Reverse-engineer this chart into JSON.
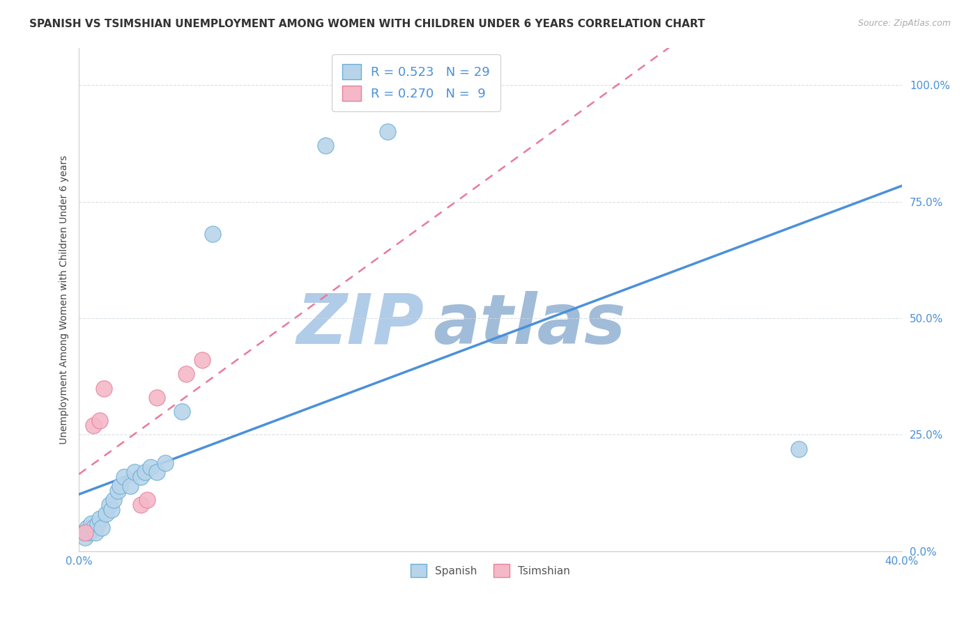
{
  "title": "SPANISH VS TSIMSHIAN UNEMPLOYMENT AMONG WOMEN WITH CHILDREN UNDER 6 YEARS CORRELATION CHART",
  "source": "Source: ZipAtlas.com",
  "ylabel": "Unemployment Among Women with Children Under 6 years",
  "xlim": [
    0.0,
    0.4
  ],
  "ylim": [
    0.0,
    1.08
  ],
  "xtick_positions": [
    0.0,
    0.4
  ],
  "xtick_labels": [
    "0.0%",
    "40.0%"
  ],
  "ytick_positions": [
    0.0,
    0.25,
    0.5,
    0.75,
    1.0
  ],
  "ytick_labels": [
    "0.0%",
    "25.0%",
    "50.0%",
    "75.0%",
    "100.0%"
  ],
  "spanish_x": [
    0.002,
    0.003,
    0.004,
    0.005,
    0.006,
    0.007,
    0.008,
    0.009,
    0.01,
    0.011,
    0.013,
    0.015,
    0.016,
    0.017,
    0.019,
    0.02,
    0.022,
    0.025,
    0.027,
    0.03,
    0.032,
    0.035,
    0.038,
    0.042,
    0.05,
    0.065,
    0.12,
    0.15,
    0.35
  ],
  "spanish_y": [
    0.04,
    0.03,
    0.05,
    0.04,
    0.06,
    0.05,
    0.04,
    0.06,
    0.07,
    0.05,
    0.08,
    0.1,
    0.09,
    0.11,
    0.13,
    0.14,
    0.16,
    0.14,
    0.17,
    0.16,
    0.17,
    0.18,
    0.17,
    0.19,
    0.3,
    0.68,
    0.87,
    0.9,
    0.22
  ],
  "tsimshian_x": [
    0.003,
    0.007,
    0.01,
    0.012,
    0.03,
    0.033,
    0.038,
    0.052,
    0.06
  ],
  "tsimshian_y": [
    0.04,
    0.27,
    0.28,
    0.35,
    0.1,
    0.11,
    0.33,
    0.38,
    0.41
  ],
  "spanish_R": 0.523,
  "spanish_N": 29,
  "tsimshian_R": 0.27,
  "tsimshian_N": 9,
  "spanish_color": "#b8d4ea",
  "spanish_edge_color": "#6aaed6",
  "spanish_line_color": "#4a90d9",
  "tsimshian_color": "#f4b8c8",
  "tsimshian_edge_color": "#e8809a",
  "tsimshian_line_color": "#e87a9a",
  "watermark_part1": "ZIP",
  "watermark_part2": "atlas",
  "watermark_color1": "#b0cce8",
  "watermark_color2": "#a0bcd8",
  "background_color": "#ffffff",
  "title_fontsize": 11,
  "axis_label_fontsize": 10,
  "tick_fontsize": 11,
  "legend_fontsize": 13,
  "tick_color": "#4a90d9",
  "grid_color": "#d0d8e0",
  "source_color": "#aaaaaa"
}
